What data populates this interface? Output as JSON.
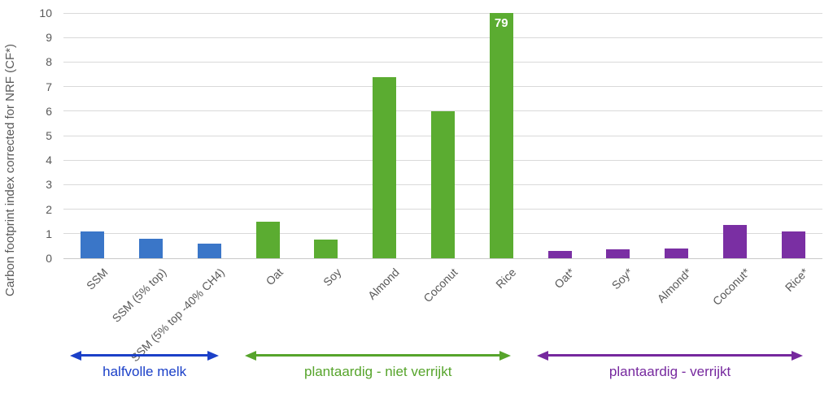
{
  "chart_data": {
    "type": "bar",
    "title": "",
    "xlabel": "",
    "ylabel": "Carbon footprint index corrected for NRF (CF*)",
    "ylim": [
      0,
      10
    ],
    "yticks": [
      0,
      1,
      2,
      3,
      4,
      5,
      6,
      7,
      8,
      9,
      10
    ],
    "grid": "horizontal gridlines on",
    "legend": "none (groups indicated by colored arrows below axis)",
    "bars": [
      {
        "label": "SSM",
        "value": 1.1,
        "group": "dairy"
      },
      {
        "label": "SSM (5% top)",
        "value": 0.8,
        "group": "dairy"
      },
      {
        "label": "SSM (5% top -40% CH4)",
        "value": 0.6,
        "group": "dairy"
      },
      {
        "label": "Oat",
        "value": 1.5,
        "group": "plant_unfortified"
      },
      {
        "label": "Soy",
        "value": 0.75,
        "group": "plant_unfortified"
      },
      {
        "label": "Almond",
        "value": 7.4,
        "group": "plant_unfortified"
      },
      {
        "label": "Coconut",
        "value": 6.0,
        "group": "plant_unfortified"
      },
      {
        "label": "Rice",
        "value": 79,
        "clipped_at_axis_max": true,
        "data_label": "79",
        "group": "plant_unfortified"
      },
      {
        "label": "Oat*",
        "value": 0.3,
        "group": "plant_fortified"
      },
      {
        "label": "Soy*",
        "value": 0.35,
        "group": "plant_fortified"
      },
      {
        "label": "Almond*",
        "value": 0.4,
        "group": "plant_fortified"
      },
      {
        "label": "Coconut*",
        "value": 1.35,
        "group": "plant_fortified"
      },
      {
        "label": "Rice*",
        "value": 1.1,
        "group": "plant_fortified"
      }
    ],
    "groups": [
      {
        "id": "dairy",
        "label": "halfvolle melk",
        "bar_color": "#3a76c8",
        "accent_color": "#1b40c8",
        "start_index": 0,
        "end_index": 2
      },
      {
        "id": "plant_unfortified",
        "label": "plantaardig - niet verrijkt",
        "bar_color": "#5bac31",
        "accent_color": "#56a42b",
        "start_index": 3,
        "end_index": 7
      },
      {
        "id": "plant_fortified",
        "label": "plantaardig - verrijkt",
        "bar_color": "#7a2fa3",
        "accent_color": "#76289e",
        "start_index": 8,
        "end_index": 12
      }
    ],
    "colors": {
      "axis_text": "#595959",
      "gridline": "#d9d9d9",
      "data_label_text": "#ffffff",
      "background": "#ffffff"
    }
  }
}
